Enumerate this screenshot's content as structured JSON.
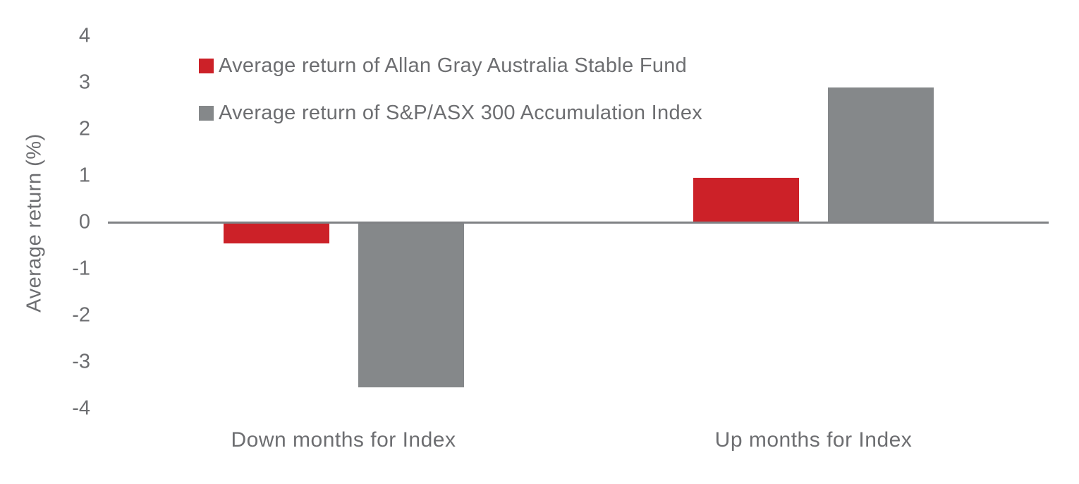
{
  "chart_data": {
    "type": "bar",
    "title": "",
    "xlabel": "",
    "ylabel": "Average return (%)",
    "categories": [
      "Down months for Index",
      "Up months for Index"
    ],
    "series": [
      {
        "name": "Average return of Allan Gray Australia Stable Fund",
        "color": "#cc2128",
        "values": [
          -0.45,
          0.95
        ]
      },
      {
        "name": "Average return of S&P/ASX 300 Accumulation Index",
        "color": "#85888a",
        "values": [
          -3.55,
          2.9
        ]
      }
    ],
    "ylim": [
      -4,
      4
    ],
    "yticks": [
      4,
      3,
      2,
      1,
      0,
      -1,
      -2,
      -3,
      -4
    ],
    "grid": false,
    "legend_position": "inside-top-left",
    "colors": {
      "text": "#6d6e71",
      "axis_line": "#808285",
      "background": "#ffffff"
    }
  }
}
